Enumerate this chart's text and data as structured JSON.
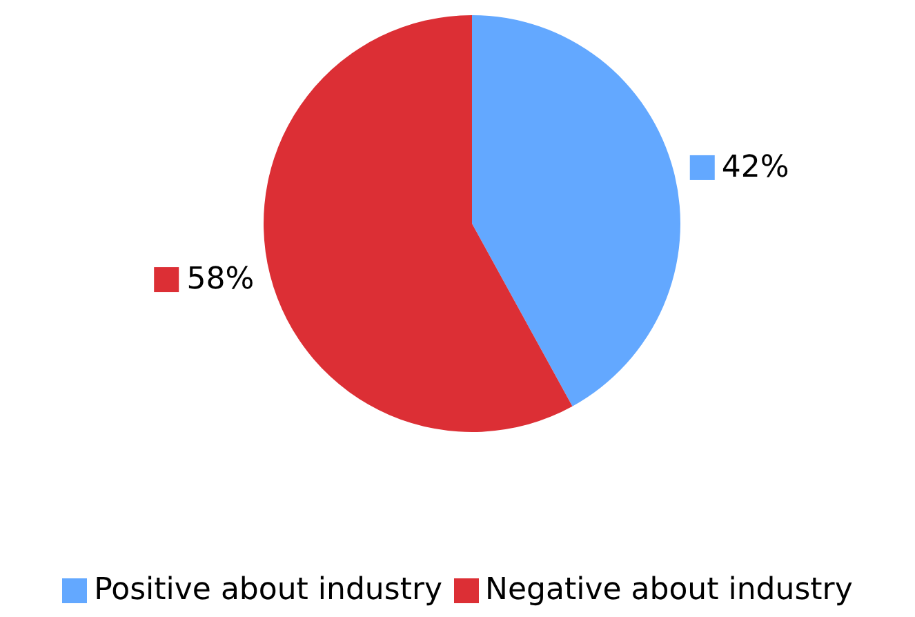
{
  "chart_data": {
    "type": "pie",
    "categories": [
      "Positive about industry",
      "Negative about industry"
    ],
    "values": [
      42,
      58
    ],
    "colors": [
      "#63a8ff",
      "#dc2f35"
    ],
    "value_labels": [
      "42%",
      "58%"
    ],
    "legend": "bottom"
  }
}
